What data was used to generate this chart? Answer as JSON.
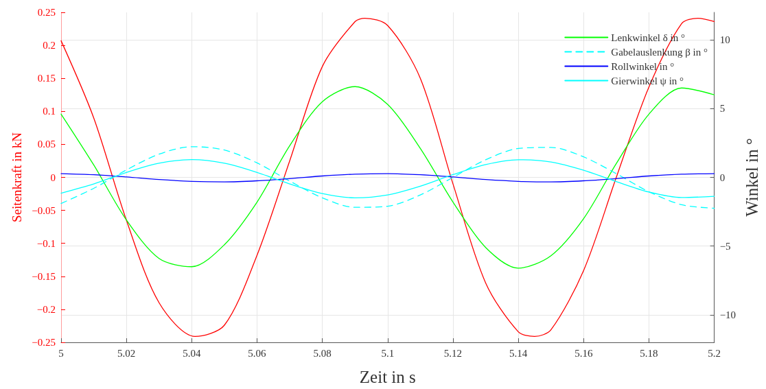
{
  "chart_data": {
    "type": "line",
    "xlabel": "Zeit in s",
    "ylabel": "Seitenkraft in kN",
    "y2label": "Winkel in °",
    "x": [
      5,
      5.01,
      5.02,
      5.03,
      5.04,
      5.05,
      5.06,
      5.07,
      5.08,
      5.09,
      5.1,
      5.11,
      5.12,
      5.13,
      5.14,
      5.15,
      5.16,
      5.17,
      5.18,
      5.19,
      5.2
    ],
    "series": [
      {
        "color": "#ff0000",
        "axis": "y",
        "x": [
          5,
          5.01,
          5.02,
          5.03,
          5.041,
          5.05,
          5.06,
          5.07,
          5.08,
          5.09,
          5.093,
          5.1,
          5.11,
          5.12,
          5.13,
          5.14,
          5.145,
          5.15,
          5.16,
          5.17,
          5.18,
          5.19,
          5.195,
          5.2
        ],
        "values": [
          0.207,
          0.09,
          -0.065,
          -0.19,
          -0.241,
          -0.224,
          -0.118,
          0.025,
          0.168,
          0.236,
          0.241,
          0.23,
          0.15,
          -0.01,
          -0.16,
          -0.234,
          -0.241,
          -0.231,
          -0.141,
          0.0,
          0.137,
          0.233,
          0.241,
          0.236
        ]
      },
      {
        "name": "Lenkwinkel δ in °",
        "color": "#00ff00",
        "axis": "y2",
        "line_style": "solid",
        "values": [
          4.6,
          0.9,
          -3.1,
          -5.9,
          -6.5,
          -4.9,
          -1.8,
          2.3,
          5.5,
          6.6,
          5.3,
          2.1,
          -1.8,
          -5.1,
          -6.6,
          -5.7,
          -3.0,
          1.0,
          4.6,
          6.5,
          6.0
        ]
      },
      {
        "name": "Gabelauslenkung β in °",
        "color": "#00ffff",
        "axis": "y2",
        "line_style": "dashed",
        "values": [
          -1.9,
          -0.8,
          0.54,
          1.69,
          2.23,
          1.99,
          1.05,
          -0.27,
          -1.49,
          -2.18,
          -2.1,
          -1.28,
          0.0,
          1.28,
          2.1,
          2.18,
          1.49,
          0.27,
          -1.05,
          -1.99,
          -2.25
        ]
      },
      {
        "name": "Rollwinkel in °",
        "color": "#0000ff",
        "axis": "y2",
        "line_style": "solid",
        "values": [
          0.27,
          0.19,
          0.03,
          -0.16,
          -0.29,
          -0.33,
          -0.25,
          -0.09,
          0.1,
          0.23,
          0.27,
          0.19,
          0.03,
          -0.16,
          -0.29,
          -0.33,
          -0.25,
          -0.09,
          0.1,
          0.23,
          0.27
        ]
      },
      {
        "name": "Gierwinkel ψ in °",
        "color": "#00ffff",
        "axis": "y2",
        "line_style": "solid",
        "values": [
          -1.15,
          -0.48,
          0.36,
          1.03,
          1.29,
          1.03,
          0.36,
          -0.48,
          -1.18,
          -1.49,
          -1.28,
          -0.64,
          0.2,
          0.93,
          1.28,
          1.12,
          0.52,
          -0.31,
          -1.07,
          -1.47,
          -1.38
        ]
      }
    ],
    "xlim": [
      5,
      5.2
    ],
    "xticks": [
      5,
      5.02,
      5.04,
      5.06,
      5.08,
      5.1,
      5.12,
      5.14,
      5.16,
      5.18,
      5.2
    ],
    "ylim": [
      -0.25,
      0.25
    ],
    "yticks": [
      -0.25,
      -0.2,
      -0.15,
      -0.1,
      -0.05,
      0,
      0.05,
      0.1,
      0.15,
      0.2,
      0.25
    ],
    "y2lim": [
      -12,
      12
    ],
    "y2ticks": [
      -10,
      -5,
      0,
      5,
      10
    ],
    "grid": true,
    "legend": "top right",
    "marker": "none"
  }
}
